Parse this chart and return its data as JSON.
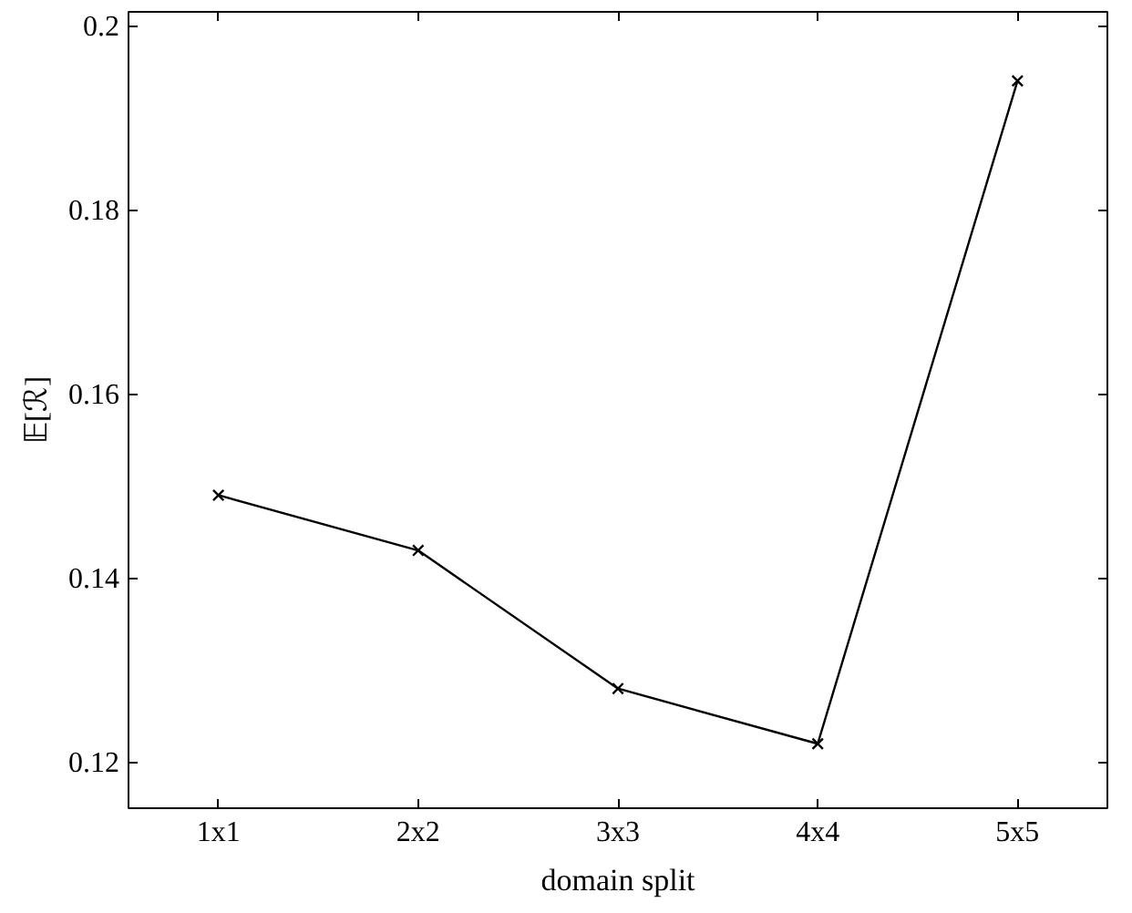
{
  "chart_data": {
    "type": "line",
    "xlabel": "domain split",
    "ylabel": "𝔼[ℛ]",
    "categories": [
      "1x1",
      "2x2",
      "3x3",
      "4x4",
      "5x5"
    ],
    "series": [
      {
        "color": "#000000",
        "values": [
          0.149,
          0.143,
          0.128,
          0.122,
          0.194
        ]
      }
    ],
    "ylim": [
      0.115,
      0.2015
    ],
    "yticks": [
      0.12,
      0.14,
      0.16,
      0.18,
      0.2
    ],
    "marker": "cross",
    "line_style": "solid"
  }
}
